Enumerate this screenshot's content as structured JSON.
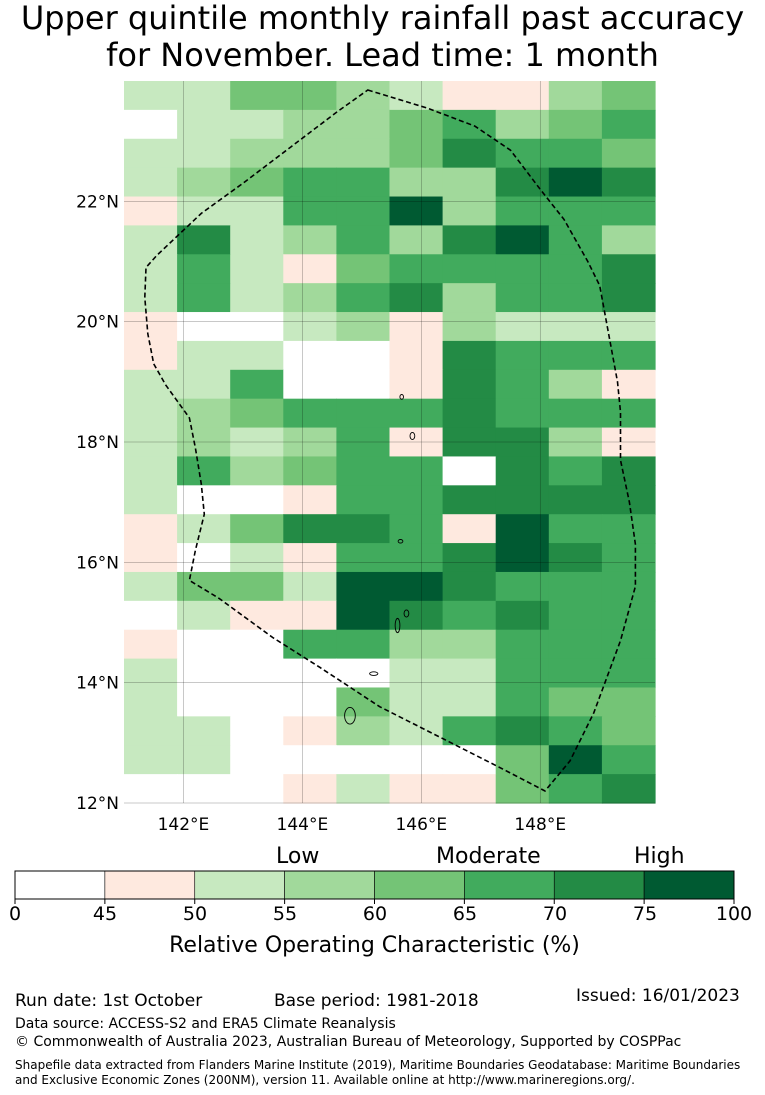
{
  "title_line1": "Upper quintile monthly rainfall past accuracy",
  "title_line2": "for November. Lead time: 1 month",
  "map": {
    "lon_range": [
      141.0,
      149.93
    ],
    "lat_range": [
      12.0,
      24.0
    ],
    "lon_ticks": [
      {
        "value": 142,
        "label": "142°E"
      },
      {
        "value": 144,
        "label": "144°E"
      },
      {
        "value": 146,
        "label": "146°E"
      },
      {
        "value": 148,
        "label": "148°E"
      }
    ],
    "lat_ticks": [
      {
        "value": 12,
        "label": "12°N"
      },
      {
        "value": 14,
        "label": "14°N"
      },
      {
        "value": 16,
        "label": "16°N"
      },
      {
        "value": 18,
        "label": "18°N"
      },
      {
        "value": 20,
        "label": "20°N"
      },
      {
        "value": 22,
        "label": "22°N"
      }
    ],
    "grid_lines": true,
    "grid_classes": [
      "2244321134",
      "0223345345",
      "2233346554",
      "2345533676",
      "1225573555",
      "2623536753",
      "2521455556",
      "2523563556",
      "1002313222",
      "1220016555",
      "2250016531",
      "2345556555",
      "2323516631",
      "2534550656",
      "2001556666",
      "1246651755",
      "1021556765",
      "2442776555",
      "0211765655",
      "1005533555",
      "2000022555",
      "2000422544",
      "2201325654",
      "2200000475",
      "0001211456"
    ],
    "eez_boundary": [
      [
        145.1,
        23.85
      ],
      [
        146.1,
        23.55
      ],
      [
        146.9,
        23.25
      ],
      [
        147.5,
        22.85
      ],
      [
        148.0,
        22.2
      ],
      [
        148.4,
        21.7
      ],
      [
        148.8,
        21.0
      ],
      [
        149.0,
        20.6
      ],
      [
        149.15,
        19.8
      ],
      [
        149.3,
        19.0
      ],
      [
        149.35,
        18.5
      ],
      [
        149.35,
        17.7
      ],
      [
        149.5,
        17.0
      ],
      [
        149.6,
        16.3
      ],
      [
        149.6,
        15.6
      ],
      [
        149.35,
        14.7
      ],
      [
        148.9,
        13.5
      ],
      [
        148.5,
        12.7
      ],
      [
        148.08,
        12.2
      ],
      [
        147.3,
        12.6
      ],
      [
        146.3,
        13.1
      ],
      [
        145.3,
        13.6
      ],
      [
        144.3,
        14.25
      ],
      [
        143.5,
        14.75
      ],
      [
        142.6,
        15.4
      ],
      [
        142.1,
        15.7
      ],
      [
        142.2,
        16.2
      ],
      [
        142.35,
        16.8
      ],
      [
        142.3,
        17.3
      ],
      [
        142.2,
        17.9
      ],
      [
        142.1,
        18.4
      ],
      [
        141.7,
        18.95
      ],
      [
        141.5,
        19.3
      ],
      [
        141.4,
        19.8
      ],
      [
        141.35,
        20.4
      ],
      [
        141.37,
        20.9
      ],
      [
        141.55,
        21.1
      ],
      [
        142.3,
        21.8
      ],
      [
        143.0,
        22.3
      ],
      [
        143.8,
        22.9
      ],
      [
        144.6,
        23.5
      ],
      [
        145.1,
        23.85
      ]
    ],
    "islands": [
      {
        "lon": 144.8,
        "lat": 13.45,
        "rx": 0.09,
        "ry": 0.14
      },
      {
        "lon": 145.2,
        "lat": 14.15,
        "rx": 0.07,
        "ry": 0.03
      },
      {
        "lon": 145.6,
        "lat": 14.95,
        "rx": 0.04,
        "ry": 0.12
      },
      {
        "lon": 145.75,
        "lat": 15.15,
        "rx": 0.04,
        "ry": 0.06
      },
      {
        "lon": 145.65,
        "lat": 16.35,
        "rx": 0.04,
        "ry": 0.03
      },
      {
        "lon": 145.85,
        "lat": 18.1,
        "rx": 0.04,
        "ry": 0.06
      },
      {
        "lon": 145.67,
        "lat": 18.75,
        "rx": 0.03,
        "ry": 0.04
      }
    ]
  },
  "colorbar": {
    "levels": [
      "Low",
      "Moderate",
      "High"
    ],
    "ticks": [
      "0",
      "45",
      "50",
      "55",
      "60",
      "65",
      "70",
      "75",
      "100"
    ],
    "colors": [
      "#ffffff",
      "#fee9df",
      "#c7e9c0",
      "#a1d99b",
      "#74c476",
      "#41ab5d",
      "#238b45",
      "#005a32"
    ],
    "label": "Relative Operating Characteristic (%)"
  },
  "footer": {
    "run_date": "Run date: 1st October",
    "base_period": "Base period: 1981-2018",
    "issued": "Issued: 16/01/2023",
    "data_source": "Data source: ACCESS-S2 and ERA5 Climate Reanalysis",
    "copyright": "© Commonwealth of Australia 2023, Australian Bureau of Meteorology, Supported by COSPPac",
    "shapefile_line1": "Shapefile data extracted from Flanders Marine Institute (2019), Maritime Boundaries Geodatabase: Maritime Boundaries",
    "shapefile_line2": "and Exclusive Economic Zones (200NM), version 11. Available online at http://www.marineregions.org/."
  }
}
